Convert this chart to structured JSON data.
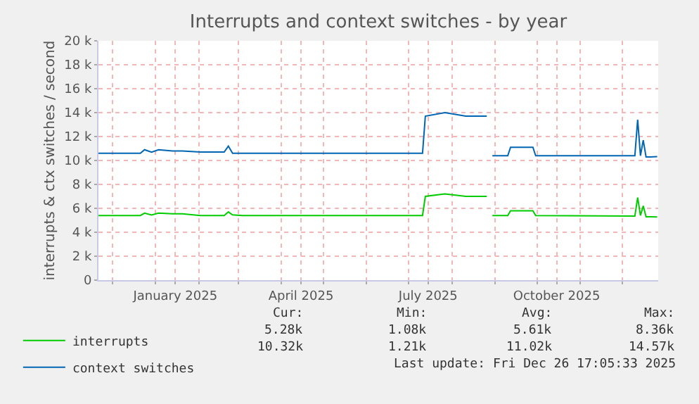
{
  "chart_data": {
    "type": "line",
    "title": "Interrupts and context switches - by year",
    "ylabel": "interrupts & ctx switches / second",
    "x": [
      "2024-11-21",
      "2024-12-21",
      "2024-12-24",
      "2024-12-29",
      "2025-01-03",
      "2025-01-13",
      "2025-01-20",
      "2025-02-02",
      "2025-02-19",
      "2025-02-22",
      "2025-02-25",
      "2025-03-04",
      "2025-07-11",
      "2025-07-13",
      "2025-07-27",
      "2025-08-11",
      "2025-08-26",
      "2025-08-28",
      "2025-08-30",
      "2025-09-10",
      "2025-09-12",
      "2025-09-28",
      "2025-09-30",
      "2025-12-10",
      "2025-12-12",
      "2025-12-14",
      "2025-12-16",
      "2025-12-18",
      "2025-12-21",
      "2025-12-26"
    ],
    "series": [
      {
        "name": "interrupts",
        "color": "#00cc00",
        "values": [
          5400,
          5400,
          5600,
          5450,
          5600,
          5550,
          5550,
          5400,
          5400,
          5700,
          5450,
          5400,
          5400,
          7000,
          7200,
          7000,
          7000,
          null,
          5400,
          5400,
          5800,
          5800,
          5400,
          5350,
          6900,
          5400,
          6200,
          5300,
          5300,
          5280
        ]
      },
      {
        "name": "context switches",
        "color": "#0066b3",
        "values": [
          10600,
          10600,
          10900,
          10700,
          10900,
          10800,
          10800,
          10700,
          10700,
          11200,
          10600,
          10600,
          10600,
          13700,
          14000,
          13700,
          13700,
          null,
          10400,
          10400,
          11100,
          11100,
          10400,
          10400,
          13400,
          10400,
          11700,
          10300,
          10300,
          10320
        ]
      }
    ],
    "xlim": [
      "2024-11-21",
      "2025-12-26T17:05"
    ],
    "xticks": [
      {
        "value": "2024-12-01",
        "label": null
      },
      {
        "value": "2025-01-01",
        "label": null
      },
      {
        "value": "2025-01-15",
        "label": "January 2025"
      },
      {
        "value": "2025-02-01",
        "label": null
      },
      {
        "value": "2025-03-01",
        "label": null
      },
      {
        "value": "2025-04-01",
        "label": null
      },
      {
        "value": "2025-04-15",
        "label": "April 2025"
      },
      {
        "value": "2025-05-01",
        "label": null
      },
      {
        "value": "2025-06-01",
        "label": null
      },
      {
        "value": "2025-07-01",
        "label": null
      },
      {
        "value": "2025-07-15",
        "label": "July 2025"
      },
      {
        "value": "2025-08-01",
        "label": null
      },
      {
        "value": "2025-09-01",
        "label": null
      },
      {
        "value": "2025-10-01",
        "label": null
      },
      {
        "value": "2025-10-15",
        "label": "October 2025"
      },
      {
        "value": "2025-11-01",
        "label": null
      },
      {
        "value": "2025-12-01",
        "label": null
      }
    ],
    "ylim": [
      0,
      20000
    ],
    "yticks": [
      0,
      {
        "value": 2000,
        "label": "2 k"
      },
      {
        "value": 4000,
        "label": "4 k"
      },
      {
        "value": 6000,
        "label": "6 k"
      },
      {
        "value": 8000,
        "label": "8 k"
      },
      {
        "value": 10000,
        "label": "10 k"
      },
      {
        "value": 12000,
        "label": "12 k"
      },
      {
        "value": 14000,
        "label": "14 k"
      },
      {
        "value": 16000,
        "label": "16 k"
      },
      {
        "value": 18000,
        "label": "18 k"
      },
      {
        "value": 20000,
        "label": "20 k"
      }
    ],
    "grid": true,
    "legend": "bottom left",
    "marker": "none",
    "line_style": "solid",
    "annotations": [
      "Cur:",
      "Min:",
      "Avg:",
      "Max:",
      "5.28k",
      "1.08k",
      "5.61k",
      "8.36k",
      "10.32k",
      "1.21k",
      "11.02k",
      "14.57k",
      "Last update: Fri Dec 26 17:05:33 2025"
    ]
  }
}
